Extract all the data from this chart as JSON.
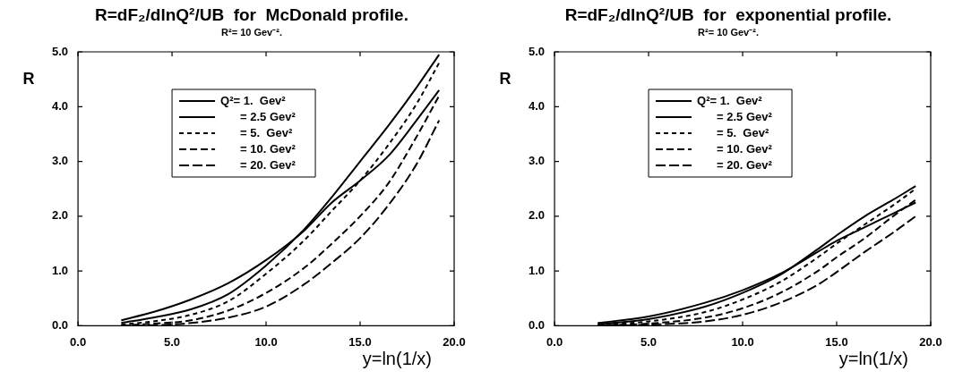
{
  "chart_data": [
    {
      "type": "line",
      "title": "R=dF₂/dlnQ²/UB  for  McDonald profile.",
      "subtitle": "R²= 10 Gev⁻².",
      "xlabel": "y=ln(1/x)",
      "ylabel": "R",
      "legend": "top",
      "grid": false,
      "marker": "none",
      "xlim": [
        0,
        20
      ],
      "xticks": [
        {
          "value": 0,
          "label": "0.0"
        },
        {
          "value": 5,
          "label": "5.0"
        },
        {
          "value": 10,
          "label": "10.0"
        },
        {
          "value": 15,
          "label": "15.0"
        },
        {
          "value": 20,
          "label": "20.0"
        }
      ],
      "ylim": [
        0,
        5
      ],
      "yticks": [
        {
          "value": 0,
          "label": "0.0"
        },
        {
          "value": 1,
          "label": "1.0"
        },
        {
          "value": 2,
          "label": "2.0"
        },
        {
          "value": 3,
          "label": "3.0"
        },
        {
          "value": 4,
          "label": "4.0"
        },
        {
          "value": 5,
          "label": "5.0"
        }
      ],
      "x": [
        2.3,
        4,
        6,
        8,
        10,
        12,
        13.5,
        15,
        16.5,
        18,
        19.2
      ],
      "series": [
        {
          "name": "Q²= 1.  Gev²",
          "color": "#000000",
          "line_style": "solid",
          "values": [
            0.1,
            0.25,
            0.48,
            0.78,
            1.2,
            1.73,
            2.25,
            2.65,
            3.1,
            3.75,
            4.3
          ]
        },
        {
          "name": "= 2.5 Gev²",
          "color": "#000000",
          "line_style": "solid",
          "values": [
            0.05,
            0.15,
            0.3,
            0.58,
            1.1,
            1.75,
            2.35,
            3.0,
            3.65,
            4.35,
            4.95
          ]
        },
        {
          "name": "= 5.  Gev²",
          "color": "#000000",
          "line_style": "dashed",
          "values": [
            0.02,
            0.08,
            0.2,
            0.45,
            0.95,
            1.55,
            2.1,
            2.65,
            3.3,
            4.05,
            4.8
          ]
        },
        {
          "name": "= 10. Gev²",
          "color": "#000000",
          "line_style": "dashed",
          "values": [
            0,
            0.04,
            0.1,
            0.28,
            0.6,
            1.05,
            1.5,
            2.0,
            2.6,
            3.45,
            4.2
          ]
        },
        {
          "name": "= 20. Gev²",
          "color": "#000000",
          "line_style": "dashed",
          "values": [
            0,
            0.01,
            0.05,
            0.15,
            0.35,
            0.75,
            1.15,
            1.6,
            2.2,
            2.95,
            3.75
          ]
        }
      ]
    },
    {
      "type": "line",
      "title": "R=dF₂/dlnQ²/UB  for  exponential profile.",
      "subtitle": "R²= 10 Gev⁻².",
      "xlabel": "y=ln(1/x)",
      "ylabel": "R",
      "legend": "top",
      "grid": false,
      "marker": "none",
      "xlim": [
        0,
        20
      ],
      "xticks": [
        {
          "value": 0,
          "label": "0.0"
        },
        {
          "value": 5,
          "label": "5.0"
        },
        {
          "value": 10,
          "label": "10.0"
        },
        {
          "value": 15,
          "label": "15.0"
        },
        {
          "value": 20,
          "label": "20.0"
        }
      ],
      "ylim": [
        0,
        5
      ],
      "yticks": [
        {
          "value": 0,
          "label": "0.0"
        },
        {
          "value": 1,
          "label": "1.0"
        },
        {
          "value": 2,
          "label": "2.0"
        },
        {
          "value": 3,
          "label": "3.0"
        },
        {
          "value": 4,
          "label": "4.0"
        },
        {
          "value": 5,
          "label": "5.0"
        }
      ],
      "x": [
        2.3,
        5,
        8,
        10,
        12,
        14,
        15,
        16.5,
        18,
        19.2
      ],
      "series": [
        {
          "name": "Q²= 1.  Gev²",
          "color": "#000000",
          "line_style": "solid",
          "values": [
            0.05,
            0.17,
            0.42,
            0.65,
            0.95,
            1.35,
            1.55,
            1.8,
            2.05,
            2.25
          ]
        },
        {
          "name": "= 2.5 Gev²",
          "color": "#000000",
          "line_style": "solid",
          "values": [
            0.03,
            0.12,
            0.35,
            0.6,
            0.93,
            1.4,
            1.65,
            2.0,
            2.3,
            2.55
          ]
        },
        {
          "name": "= 5.  Gev²",
          "color": "#000000",
          "line_style": "dashed",
          "values": [
            0.02,
            0.08,
            0.25,
            0.48,
            0.8,
            1.25,
            1.5,
            1.85,
            2.2,
            2.5
          ]
        },
        {
          "name": "= 10. Gev²",
          "color": "#000000",
          "line_style": "dashed",
          "values": [
            0.01,
            0.04,
            0.15,
            0.32,
            0.6,
            1.0,
            1.25,
            1.6,
            2.0,
            2.3
          ]
        },
        {
          "name": "= 20. Gev²",
          "color": "#000000",
          "line_style": "dashed",
          "values": [
            0,
            0.02,
            0.08,
            0.2,
            0.42,
            0.75,
            0.98,
            1.35,
            1.7,
            2.0
          ]
        }
      ]
    }
  ]
}
